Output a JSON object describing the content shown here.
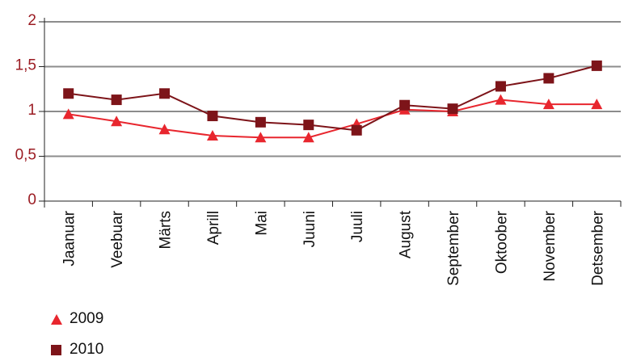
{
  "chart_data": {
    "type": "line",
    "categories": [
      "Jaanuar",
      "Veebuar",
      "Märts",
      "Aprill",
      "Mai",
      "Juuni",
      "Juuli",
      "August",
      "September",
      "Oktoober",
      "November",
      "Detsember"
    ],
    "series": [
      {
        "name": "2009",
        "marker": "triangle",
        "color": "#e8262e",
        "values": [
          0.97,
          0.89,
          0.8,
          0.73,
          0.71,
          0.71,
          0.86,
          1.02,
          1.0,
          1.13,
          1.08,
          1.08
        ]
      },
      {
        "name": "2010",
        "marker": "square",
        "color": "#7d1419",
        "values": [
          1.2,
          1.13,
          1.2,
          0.95,
          0.88,
          0.85,
          0.79,
          1.07,
          1.03,
          1.28,
          1.37,
          1.51
        ]
      }
    ],
    "yticks": [
      "0",
      "0,5",
      "1",
      "1,5",
      "2"
    ],
    "ylim": [
      0,
      2
    ],
    "grid": true,
    "legend_position": "bottom-left"
  }
}
